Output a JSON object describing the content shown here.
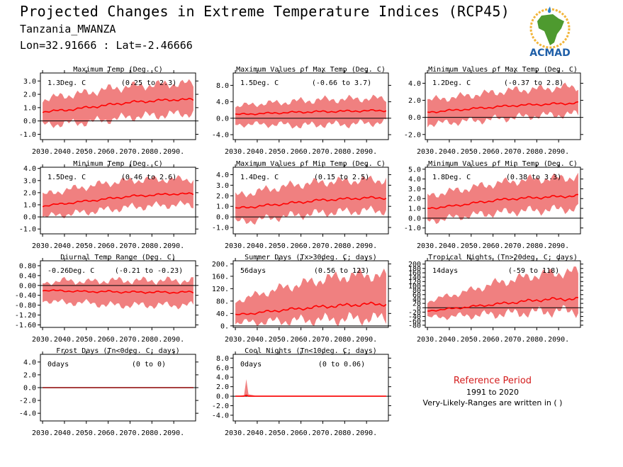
{
  "header": {
    "title": "Projected Changes in Extreme Temperature Indices (RCP45)",
    "location": "Tanzania_MWANZA",
    "coords": "Lon=32.91666 : Lat=-2.46666"
  },
  "logo": {
    "text": "ACMAD",
    "icon": "africa-map-logo"
  },
  "reference": {
    "label": "Reference Period",
    "years": "1991 to 2020",
    "note": "Very-Likely-Ranges are written in ( )"
  },
  "colors": {
    "band": "#f08080",
    "line": "#ff0000",
    "zero": "#000000",
    "ref_text": "#d41c1c"
  },
  "chart_data": [
    {
      "id": "txx_mean",
      "type": "area",
      "title": "Maximum Temp (Deg. C)",
      "summary": "1.3Deg. C",
      "range": "(0.25 to 2.3)",
      "x": [
        2030,
        2040,
        2050,
        2060,
        2070,
        2080,
        2090,
        2099
      ],
      "mean": [
        0.7,
        0.8,
        1.0,
        1.2,
        1.4,
        1.5,
        1.6,
        1.6
      ],
      "lower": [
        -0.3,
        -0.2,
        -0.1,
        0.1,
        0.3,
        0.4,
        0.5,
        0.6
      ],
      "upper": [
        1.6,
        1.9,
        2.1,
        2.4,
        2.6,
        2.7,
        2.8,
        2.8
      ],
      "yticks": [
        "-1.0",
        "0.0",
        "1.0",
        "2.0",
        "3.0"
      ],
      "ylim": [
        -1.4,
        3.6
      ],
      "xticks": [
        "2030.",
        "2040.",
        "2050.",
        "2060.",
        "2070.",
        "2080.",
        "2090."
      ]
    },
    {
      "id": "txx_max",
      "type": "area",
      "title": "Maximum Values of Max Temp (Deg. C)",
      "summary": "1.5Deg. C",
      "range": "(-0.66 to 3.7)",
      "x": [
        2030,
        2040,
        2050,
        2060,
        2070,
        2080,
        2090,
        2099
      ],
      "mean": [
        0.9,
        1.1,
        1.3,
        1.5,
        1.6,
        1.7,
        1.8,
        1.9
      ],
      "lower": [
        -1.5,
        -1.5,
        -1.5,
        -1.8,
        -1.5,
        -1.5,
        -1.2,
        -1.0
      ],
      "upper": [
        2.8,
        3.5,
        3.8,
        4.2,
        4.5,
        4.6,
        4.8,
        4.8
      ],
      "yticks": [
        "-4.0",
        "0.0",
        "4.0",
        "8.0"
      ],
      "ylim": [
        -5.2,
        11
      ],
      "xticks": [
        "2030.",
        "2040.",
        "2050.",
        "2060.",
        "2070.",
        "2080.",
        "2090."
      ]
    },
    {
      "id": "txx_min",
      "type": "area",
      "title": "Minimum Values of Max Temp (Deg. C)",
      "summary": "1.2Deg. C",
      "range": "(-0.37 to 2.8)",
      "x": [
        2030,
        2040,
        2050,
        2060,
        2070,
        2080,
        2090,
        2099
      ],
      "mean": [
        0.6,
        0.8,
        1.0,
        1.2,
        1.4,
        1.5,
        1.6,
        1.7
      ],
      "lower": [
        -0.8,
        -0.6,
        -0.4,
        -0.2,
        0.0,
        0.2,
        0.3,
        0.4
      ],
      "upper": [
        2.0,
        2.3,
        2.6,
        2.9,
        3.2,
        3.3,
        3.5,
        3.6
      ],
      "yticks": [
        "-2.0",
        "0.0",
        "2.0",
        "4.0"
      ],
      "ylim": [
        -2.6,
        5.2
      ],
      "xticks": [
        "2030.",
        "2040.",
        "2050.",
        "2060.",
        "2070.",
        "2080.",
        "2090."
      ]
    },
    {
      "id": "tn_mean",
      "type": "area",
      "title": "Minimum Temp (Deg. C)",
      "summary": "1.5Deg. C",
      "range": "(0.46 to 2.6)",
      "x": [
        2030,
        2040,
        2050,
        2060,
        2070,
        2080,
        2090,
        2099
      ],
      "mean": [
        0.9,
        1.1,
        1.3,
        1.5,
        1.7,
        1.8,
        1.9,
        1.9
      ],
      "lower": [
        0.0,
        0.2,
        0.4,
        0.6,
        0.8,
        0.9,
        1.0,
        1.0
      ],
      "upper": [
        1.8,
        2.2,
        2.5,
        2.8,
        3.0,
        3.1,
        3.1,
        3.1
      ],
      "yticks": [
        "-1.0",
        "0.0",
        "1.0",
        "2.0",
        "3.0",
        "4.0"
      ],
      "ylim": [
        -1.4,
        4.1
      ],
      "xticks": [
        "2030.",
        "2040.",
        "2050.",
        "2060.",
        "2070.",
        "2080.",
        "2090."
      ]
    },
    {
      "id": "tnx_max",
      "type": "area",
      "title": "Maximum Values of Min Temp (Deg. C)",
      "summary": "1.4Deg. C",
      "range": "(0.15 to 2.5)",
      "x": [
        2030,
        2040,
        2050,
        2060,
        2070,
        2080,
        2090,
        2099
      ],
      "mean": [
        0.8,
        1.0,
        1.2,
        1.4,
        1.6,
        1.7,
        1.8,
        1.8
      ],
      "lower": [
        -0.5,
        -0.3,
        0.0,
        0.2,
        0.4,
        0.5,
        0.6,
        0.6
      ],
      "upper": [
        2.0,
        2.4,
        2.8,
        3.1,
        3.3,
        3.4,
        3.5,
        3.5
      ],
      "yticks": [
        "-1.0",
        "0.0",
        "1.0",
        "2.0",
        "3.0",
        "4.0"
      ],
      "ylim": [
        -1.6,
        4.7
      ],
      "xticks": [
        "2030.",
        "2040.",
        "2050.",
        "2060.",
        "2070.",
        "2080.",
        "2090."
      ]
    },
    {
      "id": "tn_min",
      "type": "area",
      "title": "Minimum Values of Min Temp (Deg. C)",
      "summary": "1.8Deg. C",
      "range": "(0.38 to 3.3)",
      "x": [
        2030,
        2040,
        2050,
        2060,
        2070,
        2080,
        2090,
        2099
      ],
      "mean": [
        1.0,
        1.2,
        1.5,
        1.8,
        2.0,
        2.1,
        2.2,
        2.3
      ],
      "lower": [
        -0.3,
        0.0,
        0.3,
        0.5,
        0.7,
        0.8,
        0.9,
        1.0
      ],
      "upper": [
        2.3,
        2.7,
        3.1,
        3.5,
        3.8,
        4.0,
        4.1,
        4.2
      ],
      "yticks": [
        "-1.0",
        "0.0",
        "1.0",
        "2.0",
        "3.0",
        "4.0",
        "5.0"
      ],
      "ylim": [
        -1.6,
        5.2
      ],
      "xticks": [
        "2030.",
        "2040.",
        "2050.",
        "2060.",
        "2070.",
        "2080.",
        "2090."
      ]
    },
    {
      "id": "dtr",
      "type": "area",
      "title": "Diurnal Temp Range (Deg. C)",
      "summary": "-0.26Deg. C",
      "range": "(-0.21 to -0.23)",
      "x": [
        2030,
        2040,
        2050,
        2060,
        2070,
        2080,
        2090,
        2099
      ],
      "mean": [
        -0.2,
        -0.22,
        -0.25,
        -0.25,
        -0.27,
        -0.27,
        -0.28,
        -0.27
      ],
      "lower": [
        -0.6,
        -0.7,
        -0.7,
        -0.8,
        -0.8,
        -0.8,
        -0.8,
        -0.8
      ],
      "upper": [
        0.1,
        0.2,
        0.15,
        0.2,
        0.2,
        0.2,
        0.2,
        0.2
      ],
      "yticks": [
        "-1.60",
        "-1.20",
        "-0.80",
        "-0.40",
        "0.00",
        "0.40",
        "0.80"
      ],
      "ylim": [
        -1.7,
        1.0
      ],
      "xticks": [
        "2030.",
        "2040.",
        "2050.",
        "2060.",
        "2070.",
        "2080.",
        "2090."
      ]
    },
    {
      "id": "su",
      "type": "area",
      "title": "Summer Days (Tx>30deg. C; days)",
      "summary": "56days",
      "range": "(0.56 to 123)",
      "x": [
        2030,
        2040,
        2050,
        2060,
        2070,
        2080,
        2090,
        2099
      ],
      "mean": [
        35,
        42,
        50,
        56,
        62,
        66,
        70,
        70
      ],
      "lower": [
        10,
        12,
        15,
        18,
        20,
        22,
        24,
        25
      ],
      "upper": [
        80,
        100,
        120,
        135,
        150,
        160,
        165,
        160
      ],
      "yticks": [
        "0.",
        "40.",
        "80.",
        "120.",
        "160.",
        "200."
      ],
      "ylim": [
        -5,
        210
      ],
      "xticks": [
        "2030.",
        "2040.",
        "2050.",
        "2060.",
        "2070.",
        "2080.",
        "2090."
      ]
    },
    {
      "id": "tr",
      "type": "area",
      "title": "Tropical Nights (Tn>20deg. C; days)",
      "summary": "14days",
      "range": "(-59 to 118)",
      "x": [
        2030,
        2040,
        2050,
        2060,
        2070,
        2080,
        2090,
        2099
      ],
      "mean": [
        -15,
        -5,
        5,
        15,
        25,
        35,
        40,
        40
      ],
      "lower": [
        -45,
        -40,
        -35,
        -30,
        -25,
        -20,
        -15,
        -15
      ],
      "upper": [
        30,
        55,
        80,
        110,
        130,
        150,
        160,
        165
      ],
      "yticks": [
        "-80",
        "-60",
        "-40",
        "-20",
        "0",
        "20",
        "40",
        "60",
        "80",
        "100",
        "120",
        "140",
        "160",
        "180",
        "200"
      ],
      "ylim": [
        -90,
        215
      ],
      "xticks": [
        "2030.",
        "2040.",
        "2050.",
        "2060.",
        "2070.",
        "2080.",
        "2090."
      ]
    },
    {
      "id": "fd",
      "type": "line",
      "title": "Frost Days (Tn<0deg. C; days)",
      "summary": "0days",
      "range": "(0 to 0)",
      "x": [
        2030,
        2040,
        2050,
        2060,
        2070,
        2080,
        2090,
        2099
      ],
      "mean": [
        0,
        0,
        0,
        0,
        0,
        0,
        0,
        0
      ],
      "lower": [
        0,
        0,
        0,
        0,
        0,
        0,
        0,
        0
      ],
      "upper": [
        0,
        0,
        0,
        0,
        0,
        0,
        0,
        0
      ],
      "yticks": [
        "-4.0",
        "-2.0",
        "0.0",
        "2.0",
        "4.0"
      ],
      "ylim": [
        -5.2,
        5.2
      ],
      "xticks": [
        "2030.",
        "2040.",
        "2050.",
        "2060.",
        "2070.",
        "2080.",
        "2090."
      ]
    },
    {
      "id": "cn",
      "type": "area",
      "title": "Cool Nights (Tn<10deg. C; days)",
      "summary": "0days",
      "range": "(0 to 0.06)",
      "x": [
        2030,
        2034,
        2035,
        2036,
        2040,
        2050,
        2099
      ],
      "mean": [
        0,
        0,
        0.3,
        0,
        0,
        0,
        0
      ],
      "lower": [
        0,
        0,
        0,
        0,
        0,
        0,
        0
      ],
      "upper": [
        0,
        0.2,
        3.2,
        0.4,
        0,
        0,
        0
      ],
      "yticks": [
        "-4.0",
        "-2.0",
        "0.0",
        "2.0",
        "4.0",
        "6.0",
        "8.0"
      ],
      "ylim": [
        -5.2,
        8.8
      ],
      "xticks": [
        "2030.",
        "2040.",
        "2050.",
        "2060.",
        "2070.",
        "2080.",
        "2090."
      ]
    }
  ]
}
